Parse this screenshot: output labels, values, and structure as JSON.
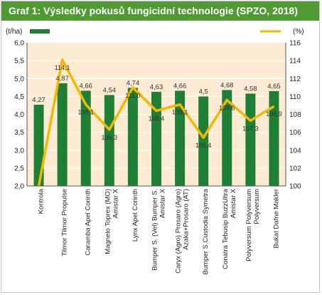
{
  "header": {
    "title": "Graf 1: Výsledky pokusů fungicidní technologie (SPZO, 2018)"
  },
  "legend": {
    "left_unit": "(t/ha)",
    "right_unit": "(%)"
  },
  "colors": {
    "header_bg": "#4f9a33",
    "bar": "#1f7f35",
    "line": "#f5b800",
    "plot_bg": "#fdebd3",
    "grid": "#ffffff"
  },
  "chart_data": {
    "type": "bar",
    "categories": [
      [
        "Kontrola"
      ],
      [
        "Tilmor Tilmor Propulse"
      ],
      [
        "Caramba Apel Corinth"
      ],
      [
        "Magnelo Toprex (MO)",
        "Amistar X"
      ],
      [
        "Lynx Apel Corinth"
      ],
      [
        "Bumper S. (Vel) Bumper S.",
        "Amistar X"
      ],
      [
        "Caryx (Agro) Prosaro (Agro)",
        "Azaka+Prosaro (AT)"
      ],
      [
        "Bumper S.Custodia Symetra"
      ],
      [
        "Conatra Tebusip BuzzUltra",
        "Amistar X"
      ],
      [
        "Polyversum Polyversum",
        "Polyversum"
      ],
      [
        "Bukat Dafne Makler"
      ]
    ],
    "series": [
      {
        "type": "bar",
        "axis": "left",
        "values": [
          4.27,
          4.87,
          4.66,
          4.54,
          4.74,
          4.63,
          4.66,
          4.5,
          4.68,
          4.58,
          4.65
        ],
        "labels": [
          "4,27",
          "4,87",
          "4,66",
          "4,54",
          "4,74",
          "4,63",
          "4,66",
          "4,5",
          "4,68",
          "4,58",
          "4,65"
        ]
      },
      {
        "type": "line",
        "axis": "right",
        "values": [
          100,
          114.1,
          109.1,
          106.3,
          111.0,
          108.4,
          109.1,
          105.4,
          109.6,
          107.3,
          108.9
        ],
        "labels": [
          "",
          "114,1",
          "109,1",
          "106,3",
          "111,0",
          "108,4",
          "109,1",
          "105,4",
          "109,6",
          "107,3",
          "108,9"
        ]
      }
    ],
    "left_axis": {
      "ylim": [
        2.0,
        6.0
      ],
      "ticks": [
        "2,0",
        "2,5",
        "3,0",
        "3,5",
        "4,0",
        "4,5",
        "5,0",
        "5,5",
        "6,0"
      ]
    },
    "right_axis": {
      "ylim": [
        100,
        116
      ],
      "ticks": [
        "100",
        "102",
        "104",
        "106",
        "108",
        "110",
        "112",
        "114",
        "116"
      ]
    },
    "grid": true,
    "legend_placement": "top"
  }
}
